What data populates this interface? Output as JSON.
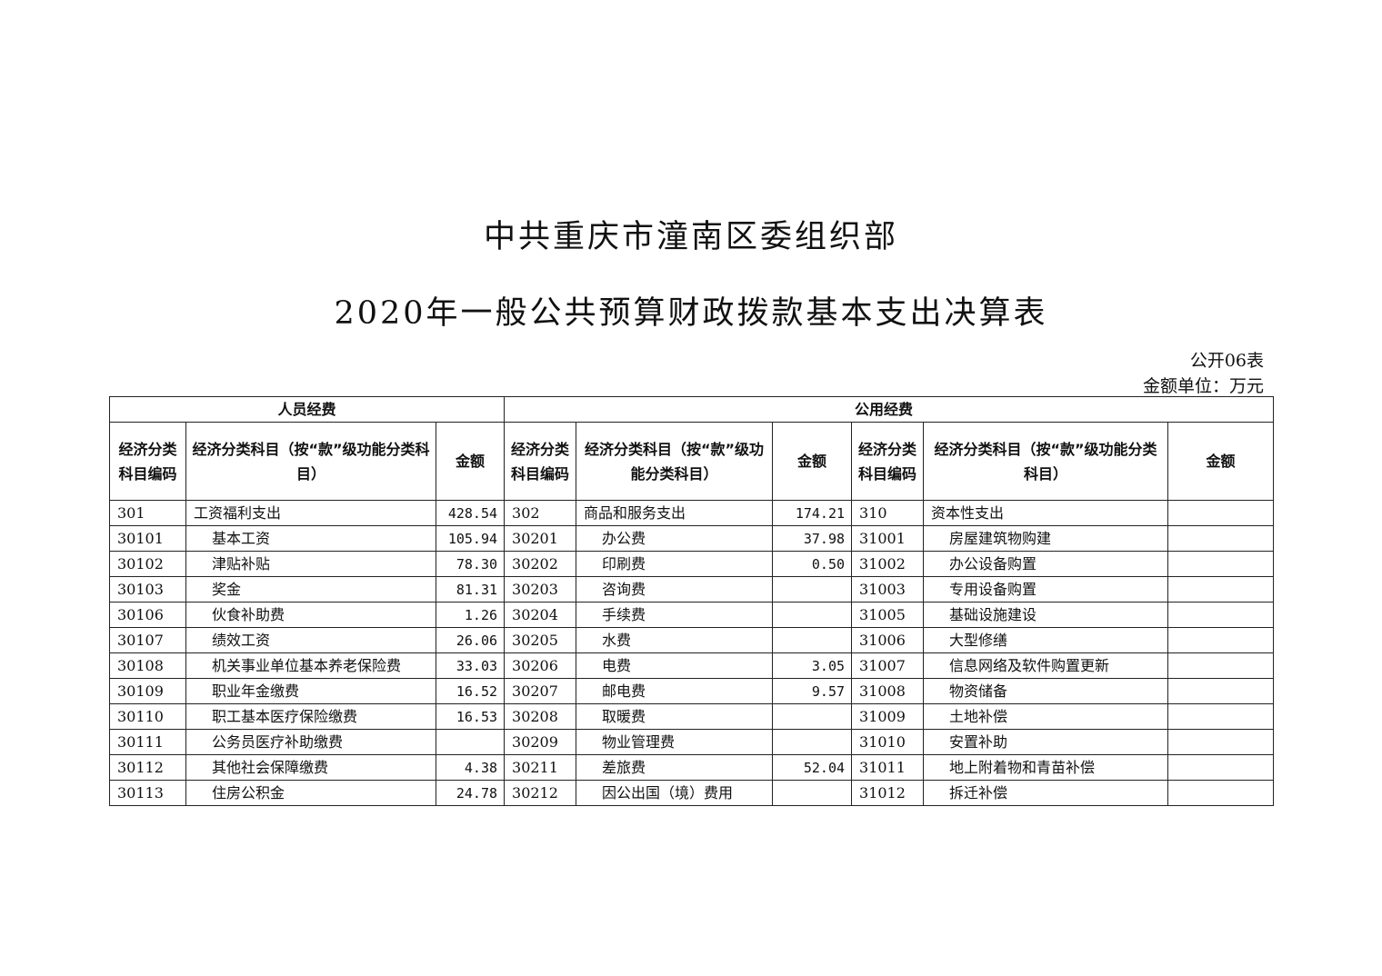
{
  "document": {
    "title_line1": "中共重庆市潼南区委组织部",
    "title_line2": "2020年一般公共预算财政拨款基本支出决算表",
    "table_id": "公开06表",
    "unit": "金额单位：万元"
  },
  "table": {
    "group_headers": [
      "人员经费",
      "公用经费"
    ],
    "col_headers": {
      "code": "经济分类科目编码",
      "name": "经济分类科目（按“款”级功能分类科目）",
      "amount": "金额"
    },
    "rows": [
      {
        "p_code": "301",
        "p_name": "工资福利支出",
        "p_amt": "428.54",
        "g_code": "302",
        "g_name": "商品和服务支出",
        "g_amt": "174.21",
        "c_code": "310",
        "c_name": "资本性支出",
        "c_amt": ""
      },
      {
        "p_code": "30101",
        "p_name": "基本工资",
        "p_amt": "105.94",
        "g_code": "30201",
        "g_name": "办公费",
        "g_amt": "37.98",
        "c_code": "31001",
        "c_name": "房屋建筑物购建",
        "c_amt": ""
      },
      {
        "p_code": "30102",
        "p_name": "津贴补贴",
        "p_amt": "78.30",
        "g_code": "30202",
        "g_name": "印刷费",
        "g_amt": "0.50",
        "c_code": "31002",
        "c_name": "办公设备购置",
        "c_amt": ""
      },
      {
        "p_code": "30103",
        "p_name": "奖金",
        "p_amt": "81.31",
        "g_code": "30203",
        "g_name": "咨询费",
        "g_amt": "",
        "c_code": "31003",
        "c_name": "专用设备购置",
        "c_amt": ""
      },
      {
        "p_code": "30106",
        "p_name": "伙食补助费",
        "p_amt": "1.26",
        "g_code": "30204",
        "g_name": "手续费",
        "g_amt": "",
        "c_code": "31005",
        "c_name": "基础设施建设",
        "c_amt": ""
      },
      {
        "p_code": "30107",
        "p_name": "绩效工资",
        "p_amt": "26.06",
        "g_code": "30205",
        "g_name": "水费",
        "g_amt": "",
        "c_code": "31006",
        "c_name": "大型修缮",
        "c_amt": ""
      },
      {
        "p_code": "30108",
        "p_name": "机关事业单位基本养老保险费",
        "p_amt": "33.03",
        "g_code": "30206",
        "g_name": "电费",
        "g_amt": "3.05",
        "c_code": "31007",
        "c_name": "信息网络及软件购置更新",
        "c_amt": ""
      },
      {
        "p_code": "30109",
        "p_name": "职业年金缴费",
        "p_amt": "16.52",
        "g_code": "30207",
        "g_name": "邮电费",
        "g_amt": "9.57",
        "c_code": "31008",
        "c_name": "物资储备",
        "c_amt": ""
      },
      {
        "p_code": "30110",
        "p_name": "职工基本医疗保险缴费",
        "p_amt": "16.53",
        "g_code": "30208",
        "g_name": "取暖费",
        "g_amt": "",
        "c_code": "31009",
        "c_name": "土地补偿",
        "c_amt": ""
      },
      {
        "p_code": "30111",
        "p_name": "公务员医疗补助缴费",
        "p_amt": "",
        "g_code": "30209",
        "g_name": "物业管理费",
        "g_amt": "",
        "c_code": "31010",
        "c_name": "安置补助",
        "c_amt": ""
      },
      {
        "p_code": "30112",
        "p_name": "其他社会保障缴费",
        "p_amt": "4.38",
        "g_code": "30211",
        "g_name": "差旅费",
        "g_amt": "52.04",
        "c_code": "31011",
        "c_name": "地上附着物和青苗补偿",
        "c_amt": ""
      },
      {
        "p_code": "30113",
        "p_name": "住房公积金",
        "p_amt": "24.78",
        "g_code": "30212",
        "g_name": "因公出国（境）费用",
        "g_amt": "",
        "c_code": "31012",
        "c_name": "拆迁补偿",
        "c_amt": ""
      }
    ]
  }
}
